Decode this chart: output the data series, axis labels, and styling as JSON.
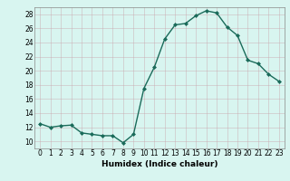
{
  "x": [
    0,
    1,
    2,
    3,
    4,
    5,
    6,
    7,
    8,
    9,
    10,
    11,
    12,
    13,
    14,
    15,
    16,
    17,
    18,
    19,
    20,
    21,
    22,
    23
  ],
  "y": [
    12.5,
    12.0,
    12.2,
    12.3,
    11.2,
    11.0,
    10.8,
    10.8,
    9.8,
    11.0,
    17.5,
    20.5,
    24.5,
    26.5,
    26.7,
    27.8,
    28.5,
    28.2,
    26.2,
    25.0,
    21.5,
    21.0,
    19.5,
    18.5
  ],
  "line_color": "#1a6b5a",
  "marker": "D",
  "marker_size": 2.0,
  "bg_color": "#d8f5f0",
  "grid_major_color": "#c8e8e0",
  "grid_minor_color": "#ddf0ec",
  "xlabel": "Humidex (Indice chaleur)",
  "ylim": [
    9,
    29
  ],
  "yticks": [
    10,
    12,
    14,
    16,
    18,
    20,
    22,
    24,
    26,
    28
  ],
  "xticks": [
    0,
    1,
    2,
    3,
    4,
    5,
    6,
    7,
    8,
    9,
    10,
    11,
    12,
    13,
    14,
    15,
    16,
    17,
    18,
    19,
    20,
    21,
    22,
    23
  ],
  "tick_label_size": 5.5,
  "xlabel_fontsize": 6.5,
  "line_width": 1.0
}
